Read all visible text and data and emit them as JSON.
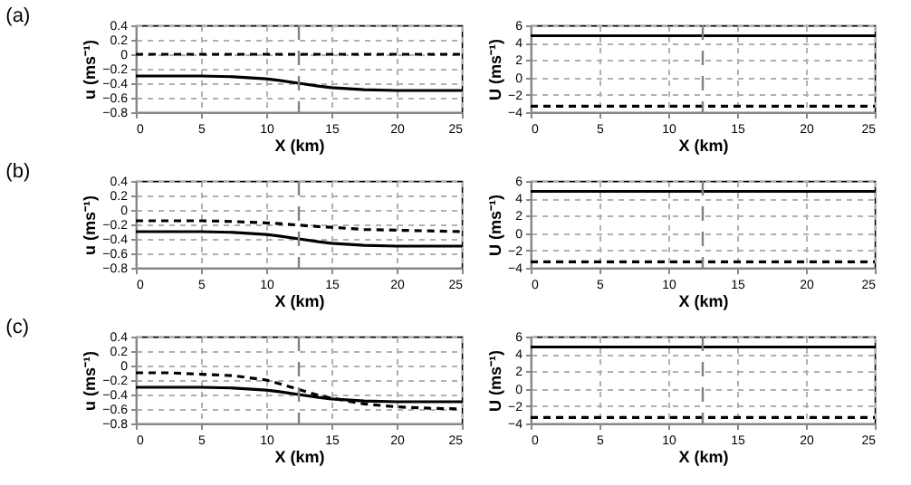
{
  "chart_data": [
    {
      "type": "line",
      "title": "(a)",
      "xlabel": "X (km)",
      "ylabel": "u (ms⁻¹)",
      "xlim": [
        0,
        25
      ],
      "xticks": [
        0,
        5,
        10,
        15,
        20,
        25
      ],
      "ylim": [
        -0.8,
        0.4
      ],
      "yticks": [
        -0.8,
        -0.6,
        -0.4,
        -0.2,
        0,
        0.2,
        0.4
      ],
      "grid": true,
      "x": [
        0,
        2.5,
        5,
        7.5,
        10,
        11,
        12.5,
        14,
        15,
        17.5,
        20,
        22.5,
        25
      ],
      "series": [
        {
          "color": "#000000",
          "line_style": "solid",
          "values": [
            -0.3,
            -0.3,
            -0.3,
            -0.31,
            -0.34,
            -0.36,
            -0.4,
            -0.44,
            -0.46,
            -0.49,
            -0.5,
            -0.5,
            -0.5
          ]
        },
        {
          "color": "#000000",
          "line_style": "dashed",
          "values": [
            0,
            0,
            0,
            0,
            0,
            0,
            0,
            0,
            0,
            0,
            0,
            0,
            0
          ]
        }
      ],
      "ref_lines": [
        {
          "axis": "x",
          "value": 12.5,
          "color": "#808080",
          "line_style": "dashed"
        }
      ]
    },
    {
      "type": "line",
      "xlabel": "X (km)",
      "ylabel": "U (ms⁻¹)",
      "xlim": [
        0,
        25
      ],
      "xticks": [
        0,
        5,
        10,
        15,
        20,
        25
      ],
      "ylim": [
        -4,
        6
      ],
      "yticks": [
        -4,
        -2,
        0,
        2,
        4,
        6
      ],
      "grid": true,
      "x": [
        0,
        25
      ],
      "series": [
        {
          "color": "#000000",
          "line_style": "solid",
          "values": [
            4.8,
            4.8
          ]
        },
        {
          "color": "#000000",
          "line_style": "dashed",
          "values": [
            -3.3,
            -3.3
          ]
        }
      ],
      "ref_lines": [
        {
          "axis": "x",
          "value": 12.5,
          "color": "#808080",
          "line_style": "dashed"
        }
      ]
    },
    {
      "type": "line",
      "title": "(b)",
      "xlabel": "X (km)",
      "ylabel": "u (ms⁻¹)",
      "xlim": [
        0,
        25
      ],
      "xticks": [
        0,
        5,
        10,
        15,
        20,
        25
      ],
      "ylim": [
        -0.8,
        0.4
      ],
      "yticks": [
        -0.8,
        -0.6,
        -0.4,
        -0.2,
        0,
        0.2,
        0.4
      ],
      "grid": true,
      "x": [
        0,
        2.5,
        5,
        7.5,
        10,
        11,
        12.5,
        14,
        15,
        17.5,
        20,
        22.5,
        25
      ],
      "series": [
        {
          "color": "#000000",
          "line_style": "solid",
          "values": [
            -0.3,
            -0.3,
            -0.3,
            -0.31,
            -0.34,
            -0.36,
            -0.4,
            -0.44,
            -0.46,
            -0.49,
            -0.5,
            -0.5,
            -0.5
          ]
        },
        {
          "color": "#000000",
          "line_style": "dashed",
          "values": [
            -0.15,
            -0.15,
            -0.15,
            -0.16,
            -0.18,
            -0.19,
            -0.21,
            -0.23,
            -0.24,
            -0.27,
            -0.28,
            -0.29,
            -0.3
          ]
        }
      ],
      "ref_lines": [
        {
          "axis": "x",
          "value": 12.5,
          "color": "#808080",
          "line_style": "dashed"
        }
      ]
    },
    {
      "type": "line",
      "xlabel": "X (km)",
      "ylabel": "U (ms⁻¹)",
      "xlim": [
        0,
        25
      ],
      "xticks": [
        0,
        5,
        10,
        15,
        20,
        25
      ],
      "ylim": [
        -4,
        6
      ],
      "yticks": [
        -4,
        -2,
        0,
        2,
        4,
        6
      ],
      "grid": true,
      "x": [
        0,
        25
      ],
      "series": [
        {
          "color": "#000000",
          "line_style": "solid",
          "values": [
            4.8,
            4.8
          ]
        },
        {
          "color": "#000000",
          "line_style": "dashed",
          "values": [
            -3.3,
            -3.3
          ]
        }
      ],
      "ref_lines": [
        {
          "axis": "x",
          "value": 12.5,
          "color": "#808080",
          "line_style": "dashed"
        }
      ]
    },
    {
      "type": "line",
      "title": "(c)",
      "xlabel": "X (km)",
      "ylabel": "u (ms⁻¹)",
      "xlim": [
        0,
        25
      ],
      "xticks": [
        0,
        5,
        10,
        15,
        20,
        25
      ],
      "ylim": [
        -0.8,
        0.4
      ],
      "yticks": [
        -0.8,
        -0.6,
        -0.4,
        -0.2,
        0,
        0.2,
        0.4
      ],
      "grid": true,
      "x": [
        0,
        2.5,
        5,
        7.5,
        10,
        11,
        12.5,
        14,
        15,
        17.5,
        20,
        22.5,
        25
      ],
      "series": [
        {
          "color": "#000000",
          "line_style": "solid",
          "values": [
            -0.3,
            -0.3,
            -0.3,
            -0.31,
            -0.34,
            -0.36,
            -0.4,
            -0.44,
            -0.46,
            -0.49,
            -0.5,
            -0.5,
            -0.5
          ]
        },
        {
          "color": "#000000",
          "line_style": "dashed",
          "values": [
            -0.1,
            -0.1,
            -0.12,
            -0.14,
            -0.2,
            -0.25,
            -0.33,
            -0.41,
            -0.45,
            -0.53,
            -0.57,
            -0.59,
            -0.6
          ]
        }
      ],
      "ref_lines": [
        {
          "axis": "x",
          "value": 12.5,
          "color": "#808080",
          "line_style": "dashed"
        }
      ]
    },
    {
      "type": "line",
      "xlabel": "X (km)",
      "ylabel": "U (ms⁻¹)",
      "xlim": [
        0,
        25
      ],
      "xticks": [
        0,
        5,
        10,
        15,
        20,
        25
      ],
      "ylim": [
        -4,
        6
      ],
      "yticks": [
        -4,
        -2,
        0,
        2,
        4,
        6
      ],
      "grid": true,
      "x": [
        0,
        25
      ],
      "series": [
        {
          "color": "#000000",
          "line_style": "solid",
          "values": [
            4.8,
            4.8
          ]
        },
        {
          "color": "#000000",
          "line_style": "dashed",
          "values": [
            -3.3,
            -3.3
          ]
        }
      ],
      "ref_lines": [
        {
          "axis": "x",
          "value": 12.5,
          "color": "#808080",
          "line_style": "dashed"
        }
      ]
    }
  ]
}
